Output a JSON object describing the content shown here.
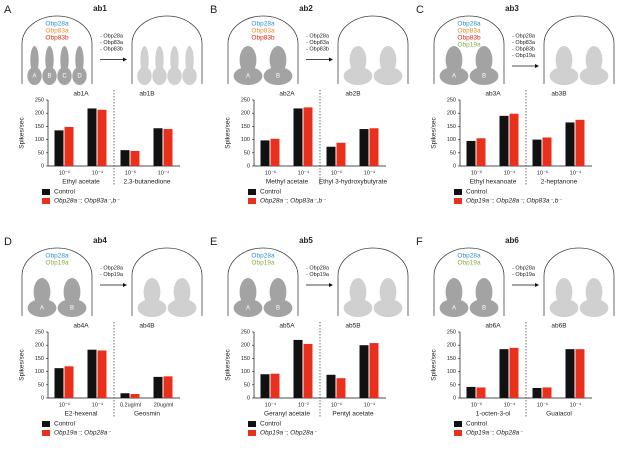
{
  "chart_data": [
    {
      "type": "bar",
      "panel": "A",
      "title": "ab1",
      "obps": [
        {
          "label": "Obp28a",
          "color": "#2a8fd4"
        },
        {
          "label": "Obp83a",
          "color": "#f28c28"
        },
        {
          "label": "Obp83b",
          "color": "#e0261b"
        }
      ],
      "removed": [
        "- Obp28a",
        "- Obp83a",
        "- Obp83b"
      ],
      "neurons": [
        "A",
        "B",
        "C",
        "D"
      ],
      "subgroups": [
        "ab1A",
        "ab1B"
      ],
      "odors": [
        "Ethyl acetate",
        "2,3-butanedione"
      ],
      "categories": [
        "10⁻⁶",
        "10⁻⁴",
        "10⁻⁶",
        "10⁻⁴"
      ],
      "ylabel": "Spikes/sec",
      "ylim": [
        0,
        250
      ],
      "yticks": [
        0,
        50,
        100,
        150,
        200,
        250
      ],
      "series": [
        {
          "name": "Control",
          "color": "#111111",
          "values": [
            135,
            218,
            60,
            143
          ]
        },
        {
          "name": "Obp28a⁻; Obp83a⁻,b⁻",
          "color": "#e8301c",
          "values": [
            148,
            213,
            57,
            140
          ]
        }
      ]
    },
    {
      "type": "bar",
      "panel": "B",
      "title": "ab2",
      "obps": [
        {
          "label": "Obp28a",
          "color": "#2a8fd4"
        },
        {
          "label": "Obp83a",
          "color": "#f28c28"
        },
        {
          "label": "Obp83b",
          "color": "#e0261b"
        }
      ],
      "removed": [
        "- Obp28a",
        "- Obp83a",
        "- Obp83b"
      ],
      "neurons": [
        "A",
        "B"
      ],
      "subgroups": [
        "ab2A",
        "ab2B"
      ],
      "odors": [
        "Methyl acetate",
        "Ethyl 3-hydroxybutyrate"
      ],
      "categories": [
        "10⁻⁶",
        "10⁻⁴",
        "10⁻⁶",
        "10⁻⁴"
      ],
      "ylabel": "Spikes/sec",
      "ylim": [
        0,
        250
      ],
      "yticks": [
        0,
        50,
        100,
        150,
        200,
        250
      ],
      "series": [
        {
          "name": "Control",
          "color": "#111111",
          "values": [
            97,
            218,
            73,
            140
          ]
        },
        {
          "name": "Obp28a⁻; Obp83a⁻,b⁻",
          "color": "#e8301c",
          "values": [
            103,
            222,
            88,
            143
          ]
        }
      ]
    },
    {
      "type": "bar",
      "panel": "C",
      "title": "ab3",
      "obps": [
        {
          "label": "Obp28a",
          "color": "#2a8fd4"
        },
        {
          "label": "Obp83a",
          "color": "#f28c28"
        },
        {
          "label": "Obp83b",
          "color": "#e0261b"
        },
        {
          "label": "Obp19a",
          "color": "#7fb041"
        }
      ],
      "removed": [
        "- Obp28a",
        "- Obp83a",
        "- Obp83b",
        "- Obp19a"
      ],
      "neurons": [
        "A",
        "B"
      ],
      "subgroups": [
        "ab3A",
        "ab3B"
      ],
      "odors": [
        "Ethyl hexanoate",
        "2-heptanone"
      ],
      "categories": [
        "10⁻⁶",
        "10⁻⁴",
        "10⁻⁶",
        "10⁻⁴"
      ],
      "ylabel": "Spikes/sec",
      "ylim": [
        0,
        250
      ],
      "yticks": [
        0,
        50,
        100,
        150,
        200,
        250
      ],
      "series": [
        {
          "name": "Control",
          "color": "#111111",
          "values": [
            95,
            190,
            100,
            165
          ]
        },
        {
          "name": "Obp19a⁻; Obp28a⁻; Obp83a⁻,b⁻",
          "color": "#e8301c",
          "values": [
            105,
            198,
            108,
            175
          ]
        }
      ]
    },
    {
      "type": "bar",
      "panel": "D",
      "title": "ab4",
      "obps": [
        {
          "label": "Obp28a",
          "color": "#2a8fd4"
        },
        {
          "label": "Obp19a",
          "color": "#7fb041"
        }
      ],
      "removed": [
        "- Obp28a",
        "- Obp19a"
      ],
      "neurons": [
        "A",
        "B"
      ],
      "subgroups": [
        "ab4A",
        "ab4B"
      ],
      "odors": [
        "E2-hexenal",
        "Geosmin"
      ],
      "categories": [
        "10⁻⁶",
        "10⁻⁴",
        "0.2ug/ml",
        "20ug/ml"
      ],
      "ylabel": "Spikes/sec",
      "ylim": [
        0,
        250
      ],
      "yticks": [
        0,
        50,
        100,
        150,
        200,
        250
      ],
      "series": [
        {
          "name": "Control",
          "color": "#111111",
          "values": [
            113,
            183,
            18,
            80
          ]
        },
        {
          "name": "Obp19a⁻; Obp28a⁻",
          "color": "#e8301c",
          "values": [
            120,
            180,
            15,
            82
          ]
        }
      ]
    },
    {
      "type": "bar",
      "panel": "E",
      "title": "ab5",
      "obps": [
        {
          "label": "Obp28a",
          "color": "#2a8fd4"
        },
        {
          "label": "Obp19a",
          "color": "#7fb041"
        }
      ],
      "removed": [
        "- Obp28a",
        "- Obp19a"
      ],
      "neurons": [
        "A",
        "B"
      ],
      "subgroups": [
        "ab5A",
        "ab5B"
      ],
      "odors": [
        "Geranyl acetate",
        "Pentyl acetate"
      ],
      "categories": [
        "10⁻⁴",
        "10⁻²",
        "10⁻⁶",
        "10⁻⁴"
      ],
      "ylabel": "Spikes/sec",
      "ylim": [
        0,
        250
      ],
      "yticks": [
        0,
        50,
        100,
        150,
        200,
        250
      ],
      "series": [
        {
          "name": "Control",
          "color": "#111111",
          "values": [
            90,
            220,
            88,
            200
          ]
        },
        {
          "name": "Obp19a⁻; Obp28a⁻",
          "color": "#e8301c",
          "values": [
            92,
            205,
            75,
            208
          ]
        }
      ]
    },
    {
      "type": "bar",
      "panel": "F",
      "title": "ab6",
      "obps": [
        {
          "label": "Obp28a",
          "color": "#2a8fd4"
        },
        {
          "label": "Obp19a",
          "color": "#7fb041"
        }
      ],
      "removed": [
        "- Obp28a",
        "- Obp19a"
      ],
      "neurons": [
        "A",
        "B"
      ],
      "subgroups": [
        "ab6A",
        "ab6B"
      ],
      "odors": [
        "1-octen-3-ol",
        "Guaiacol"
      ],
      "categories": [
        "10⁻⁶",
        "10⁻⁴",
        "10⁻⁶",
        "10⁻⁴"
      ],
      "ylabel": "Spikes/sec",
      "ylim": [
        0,
        250
      ],
      "yticks": [
        0,
        50,
        100,
        150,
        200,
        250
      ],
      "series": [
        {
          "name": "Control",
          "color": "#111111",
          "values": [
            42,
            185,
            38,
            185
          ]
        },
        {
          "name": "Obp19a⁻; Obp28a⁻",
          "color": "#e8301c",
          "values": [
            40,
            190,
            40,
            185
          ]
        }
      ]
    }
  ]
}
